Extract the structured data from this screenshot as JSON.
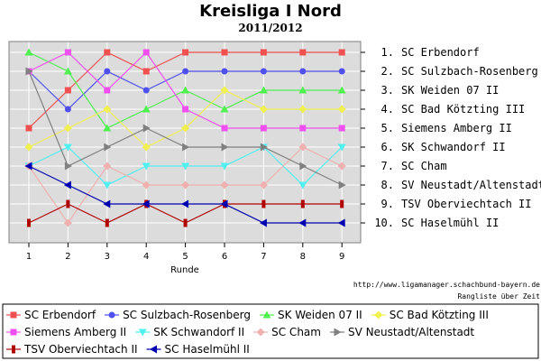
{
  "chart_data": {
    "type": "line",
    "title": "Kreisliga I Nord",
    "subtitle": "2011/2012",
    "xlabel": "Runde",
    "x": [
      1,
      2,
      3,
      4,
      5,
      6,
      7,
      8,
      9
    ],
    "ylim": [
      1,
      10
    ],
    "y_inverted": true,
    "grid": true,
    "ranking_labels": [
      "1. SC Erbendorf",
      "2. SC Sulzbach-Rosenberg",
      "3. SK Weiden 07 II",
      "4. SC Bad Kötzting III",
      "5. Siemens Amberg II",
      "6. SK Schwandorf II",
      "7. SC Cham",
      "8. SV Neustadt/Altenstadt",
      "9. TSV Oberviechtach II",
      "10. SC Haselmühl II"
    ],
    "source_url": "http://www.ligamanager.schachbund-bayern.de",
    "source_caption": "Rangliste über Zeit",
    "legend_placement": "bottom",
    "series": [
      {
        "name": "SC Erbendorf",
        "color": "#f05050",
        "marker": "square",
        "values": [
          5,
          3,
          1,
          2,
          1,
          1,
          1,
          1,
          1
        ]
      },
      {
        "name": "SC Sulzbach-Rosenberg",
        "color": "#5050f0",
        "marker": "circle",
        "values": [
          2,
          4,
          2,
          3,
          2,
          2,
          2,
          2,
          2
        ]
      },
      {
        "name": "SK Weiden 07 II",
        "color": "#50f050",
        "marker": "triangle-up",
        "values": [
          1,
          2,
          5,
          4,
          3,
          4,
          3,
          3,
          3
        ]
      },
      {
        "name": "SC Bad Kötzting III",
        "color": "#f0f050",
        "marker": "diamond",
        "values": [
          6,
          5,
          4,
          6,
          5,
          3,
          4,
          4,
          4
        ]
      },
      {
        "name": "Siemens Amberg II",
        "color": "#f050f0",
        "marker": "square",
        "values": [
          2,
          1,
          3,
          1,
          4,
          5,
          5,
          5,
          5
        ]
      },
      {
        "name": "SK Schwandorf II",
        "color": "#50f0f0",
        "marker": "triangle-down",
        "values": [
          7,
          6,
          8,
          7,
          7,
          7,
          6,
          8,
          6
        ]
      },
      {
        "name": "SC Cham",
        "color": "#f0b0b0",
        "marker": "diamond",
        "values": [
          7,
          10,
          7,
          8,
          8,
          8,
          8,
          6,
          7
        ]
      },
      {
        "name": "SV Neustadt/Altenstadt",
        "color": "#808080",
        "marker": "triangle-right",
        "values": [
          2,
          7,
          6,
          5,
          6,
          6,
          6,
          7,
          8
        ]
      },
      {
        "name": "TSV Oberviechtach II",
        "color": "#b00000",
        "marker": "bar",
        "values": [
          10,
          9,
          10,
          9,
          10,
          9,
          9,
          9,
          9
        ]
      },
      {
        "name": "SC Haselmühl II",
        "color": "#0000b0",
        "marker": "triangle-left",
        "values": [
          7,
          8,
          9,
          9,
          9,
          9,
          10,
          10,
          10
        ]
      }
    ]
  }
}
